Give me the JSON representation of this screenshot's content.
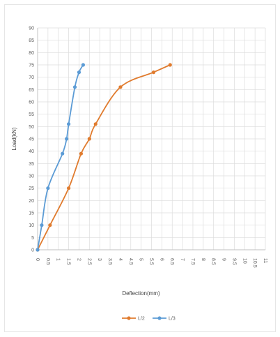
{
  "chart_data": {
    "type": "line",
    "title": "",
    "xlabel": "Deflection(mm)",
    "ylabel": "Load(kN)",
    "xlim": [
      0,
      11
    ],
    "ylim": [
      0,
      90
    ],
    "xticks": [
      "0",
      "0.5",
      "1",
      "1.5",
      "2",
      "2.5",
      "3",
      "3.5",
      "4",
      "4.5",
      "5",
      "5.5",
      "6",
      "6.5",
      "7",
      "7.5",
      "8",
      "8.5",
      "9",
      "9.5",
      "10",
      "10.5",
      "11"
    ],
    "yticks": [
      "0",
      "5",
      "10",
      "15",
      "20",
      "25",
      "30",
      "35",
      "40",
      "45",
      "50",
      "55",
      "60",
      "65",
      "70",
      "75",
      "80",
      "85",
      "90"
    ],
    "grid": true,
    "legend_position": "bottom",
    "series": [
      {
        "name": "L/2",
        "color": "#E07B2E",
        "x": [
          0,
          0.6,
          1.5,
          2.1,
          2.5,
          2.8,
          4.0,
          5.6,
          6.4
        ],
        "y": [
          0,
          10,
          25,
          39,
          45,
          51,
          66,
          72,
          75
        ]
      },
      {
        "name": "L/3",
        "color": "#5B9BD5",
        "x": [
          0,
          0.2,
          0.5,
          1.2,
          1.4,
          1.5,
          1.8,
          2.0,
          2.2
        ],
        "y": [
          0,
          10,
          25,
          39,
          45,
          51,
          66,
          72,
          75
        ]
      }
    ]
  }
}
